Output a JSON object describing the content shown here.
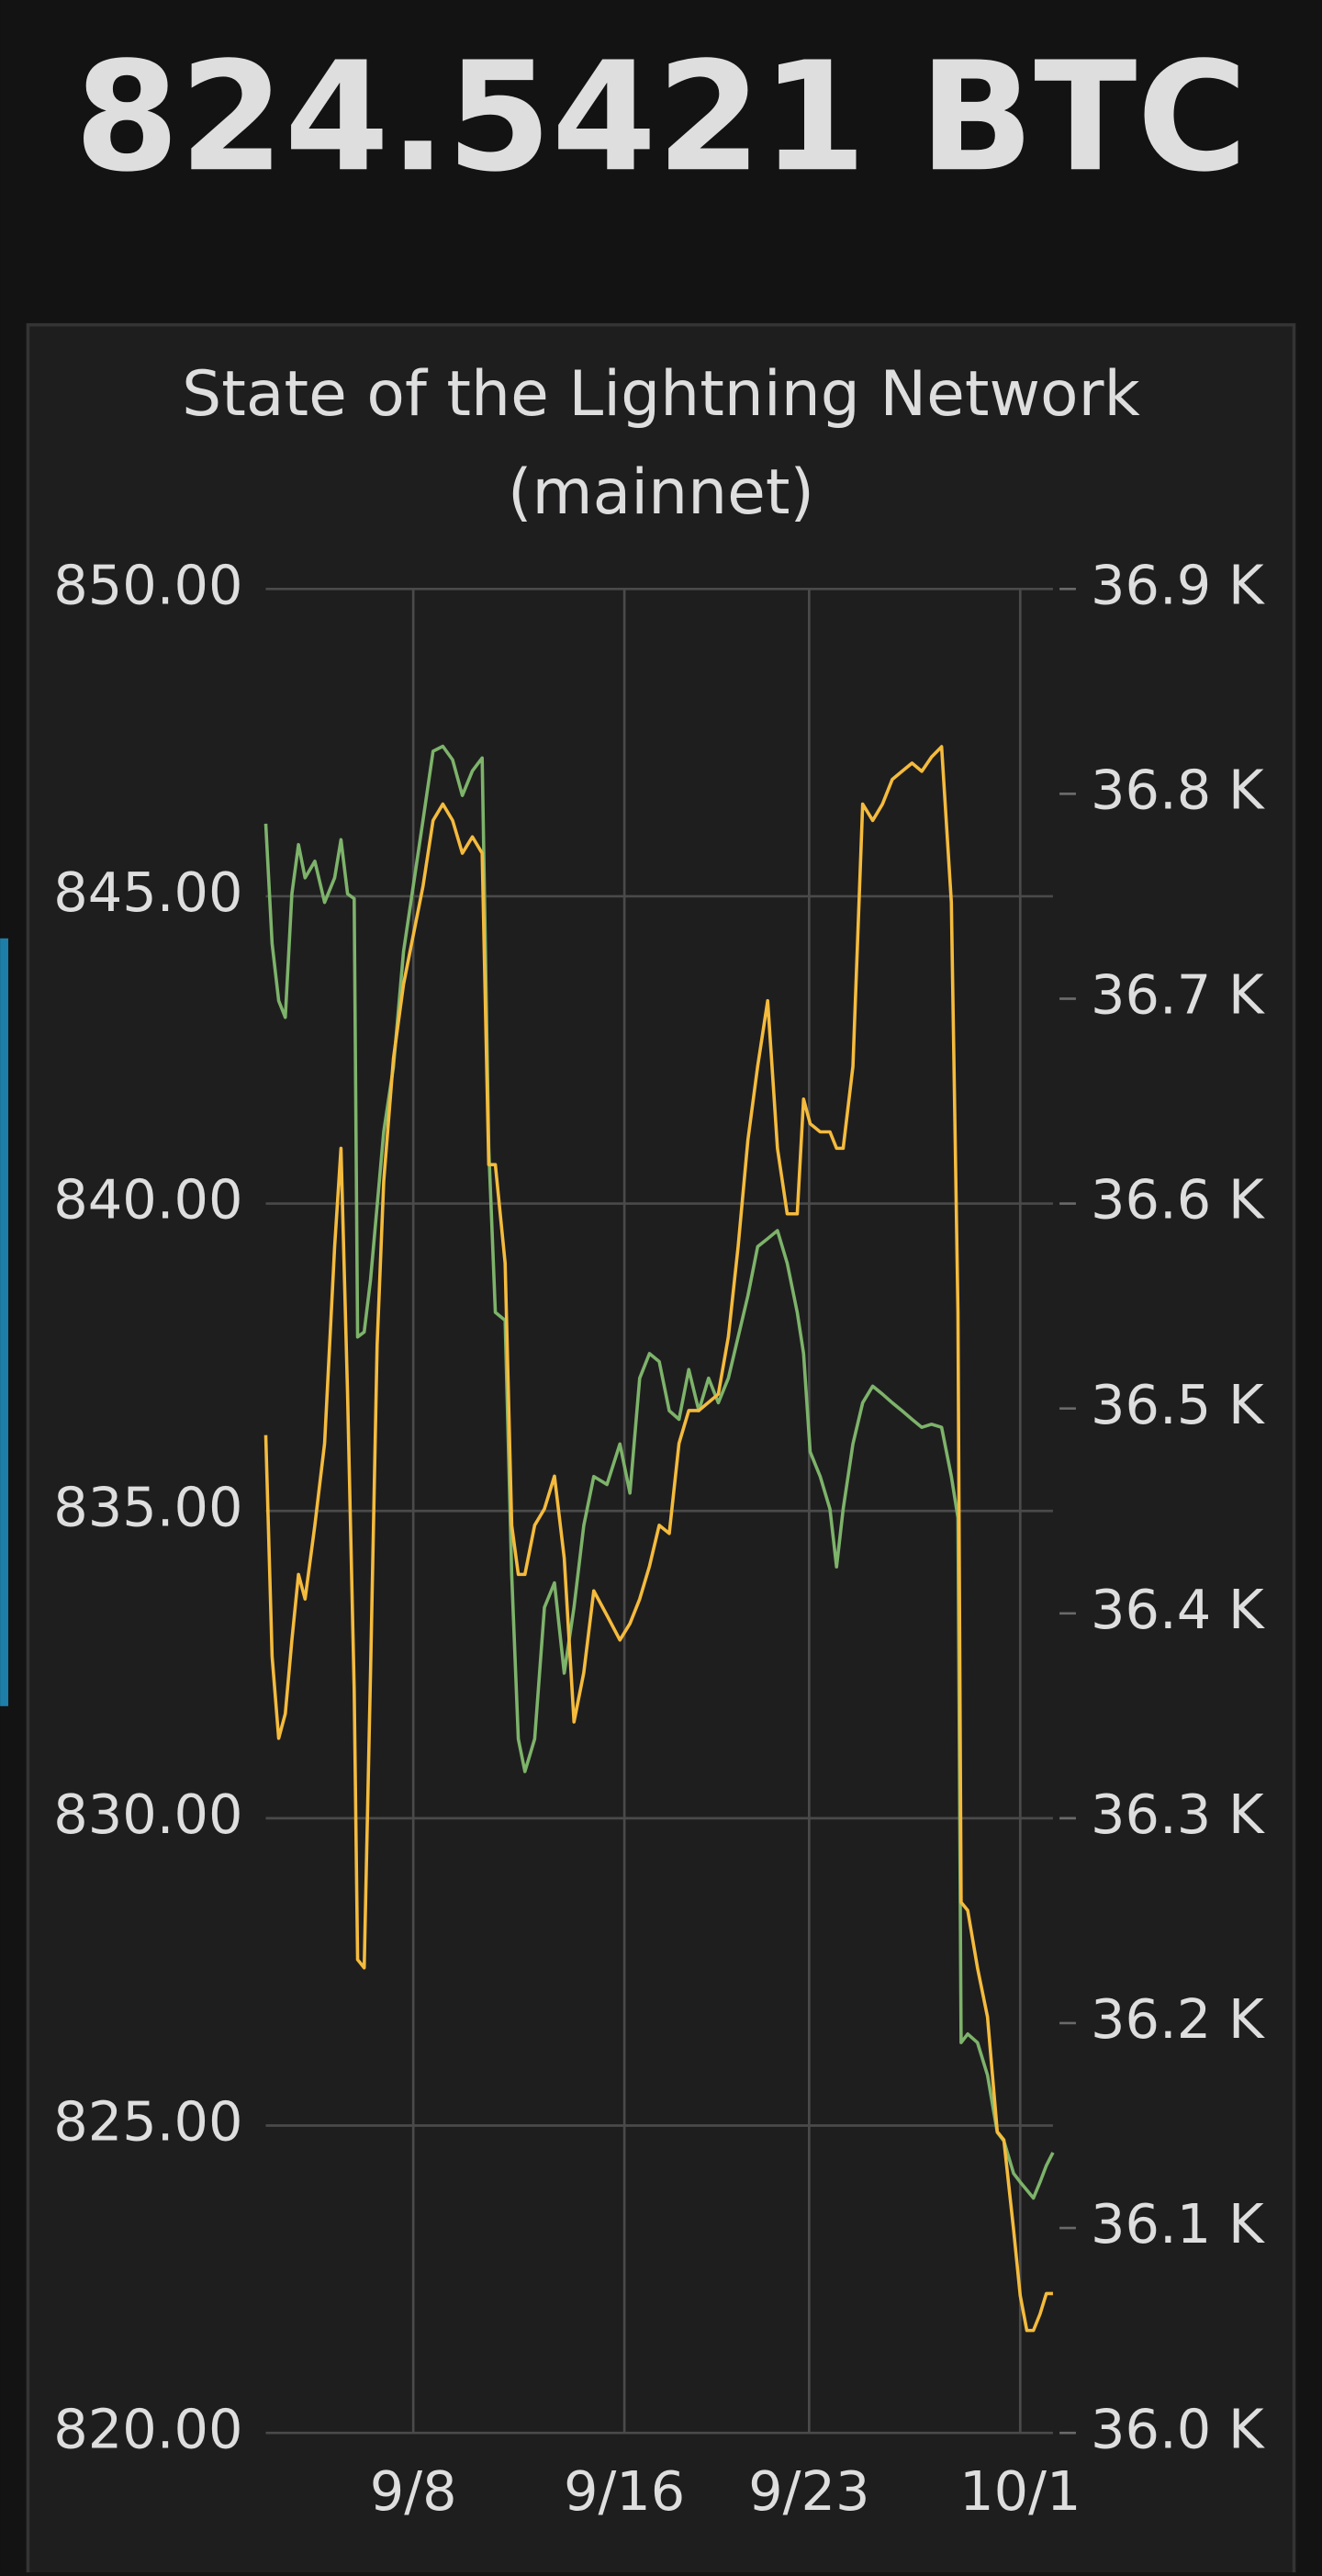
{
  "header": {
    "title": "824.5421 BTC"
  },
  "chart_data": {
    "type": "line",
    "title": "State of the Lightning Network (mainnet)",
    "x": [
      2.41,
      2.65,
      2.9,
      3.15,
      3.4,
      3.65,
      3.9,
      4.27,
      4.64,
      5.02,
      5.26,
      5.51,
      5.76,
      5.89,
      6.14,
      6.38,
      6.63,
      6.88,
      7.25,
      7.63,
      8,
      8.37,
      8.75,
      9.12,
      9.49,
      9.86,
      10.24,
      10.61,
      10.86,
      11.11,
      11.48,
      11.73,
      11.98,
      12.23,
      12.6,
      12.97,
      13.35,
      13.72,
      14.09,
      14.46,
      14.84,
      15.34,
      15.83,
      16.21,
      16.58,
      16.95,
      17.32,
      17.7,
      18.07,
      18.44,
      18.82,
      19.19,
      19.56,
      19.94,
      20.31,
      20.68,
      21.05,
      21.43,
      21.8,
      22.17,
      22.55,
      22.79,
      23.04,
      23.42,
      23.79,
      24.04,
      24.29,
      24.66,
      25.03,
      25.41,
      25.78,
      26.15,
      26.52,
      26.9,
      27.27,
      27.64,
      28.02,
      28.39,
      28.64,
      28.76,
      29.01,
      29.38,
      29.76,
      30.13,
      30.38,
      30.75,
      31,
      31.25,
      31.5,
      31.75,
      31.99,
      32.24
    ],
    "xlim": [
      2.41,
      32.24
    ],
    "xticks": [
      {
        "value": 8,
        "label": "9/8"
      },
      {
        "value": 16,
        "label": "9/16"
      },
      {
        "value": 23,
        "label": "9/23"
      },
      {
        "value": 31,
        "label": "10/1"
      }
    ],
    "ylim": [
      820,
      850
    ],
    "yticks": [
      {
        "value": 820,
        "label": "820.00"
      },
      {
        "value": 825,
        "label": "825.00"
      },
      {
        "value": 830,
        "label": "830.00"
      },
      {
        "value": 835,
        "label": "835.00"
      },
      {
        "value": 840,
        "label": "840.00"
      },
      {
        "value": 845,
        "label": "845.00"
      },
      {
        "value": 850,
        "label": "850.00"
      }
    ],
    "y2lim": [
      36000,
      36900
    ],
    "y2ticks": [
      {
        "value": 36000,
        "label": "36.0 K"
      },
      {
        "value": 36100,
        "label": "36.1 K"
      },
      {
        "value": 36200,
        "label": "36.2 K"
      },
      {
        "value": 36300,
        "label": "36.3 K"
      },
      {
        "value": 36400,
        "label": "36.4 K"
      },
      {
        "value": 36500,
        "label": "36.5 K"
      },
      {
        "value": 36600,
        "label": "36.6 K"
      },
      {
        "value": 36700,
        "label": "36.7 K"
      },
      {
        "value": 36800,
        "label": "36.8 K"
      },
      {
        "value": 36900,
        "label": "36.9 K"
      }
    ],
    "grid": true,
    "series": [
      {
        "color": "#7db36a",
        "values": [
          846.18,
          844.23,
          843.3,
          843.03,
          845.04,
          845.84,
          845.3,
          845.57,
          844.9,
          845.3,
          845.92,
          845.04,
          844.96,
          837.83,
          837.91,
          838.76,
          839.96,
          841.17,
          842.23,
          844.1,
          845.17,
          846.24,
          847.36,
          847.44,
          847.22,
          846.64,
          847.04,
          847.25,
          840.9,
          838.23,
          838.1,
          833.96,
          831.29,
          830.76,
          831.29,
          833.43,
          833.83,
          832.36,
          833.43,
          834.76,
          835.56,
          835.43,
          836.09,
          835.29,
          837.16,
          837.56,
          837.43,
          836.63,
          836.49,
          837.3,
          836.63,
          837.16,
          836.76,
          837.16,
          837.83,
          838.5,
          839.3,
          839.43,
          839.56,
          839.03,
          838.23,
          837.56,
          835.96,
          835.56,
          835.03,
          834.09,
          835.03,
          836.09,
          836.76,
          837.03,
          836.9,
          836.76,
          836.63,
          836.49,
          836.36,
          836.41,
          836.36,
          835.56,
          834.89,
          826.35,
          826.49,
          826.35,
          825.82,
          824.89,
          824.75,
          824.22,
          824.08,
          823.95,
          823.82,
          824.08,
          824.35,
          824.56
        ]
      },
      {
        "color": "#f4bb3d",
        "axis": "y2",
        "values": [
          36487,
          36379,
          36339,
          36351,
          36387,
          36419,
          36407,
          36443,
          36483,
          36579,
          36627,
          36507,
          36363,
          36231,
          36227,
          36371,
          36531,
          36611,
          36671,
          36707,
          36731,
          36755,
          36787,
          36795,
          36787,
          36771,
          36779,
          36771,
          36619,
          36619,
          36571,
          36443,
          36419,
          36419,
          36443,
          36451,
          36467,
          36427,
          36347,
          36371,
          36411,
          36399,
          36387,
          36395,
          36407,
          36423,
          36443,
          36439,
          36483,
          36499,
          36499,
          36503,
          36507,
          36535,
          36579,
          36631,
          36667,
          36699,
          36627,
          36595,
          36595,
          36651,
          36639,
          36635,
          36635,
          36627,
          36627,
          36667,
          36795,
          36787,
          36795,
          36807,
          36811,
          36815,
          36811,
          36818,
          36823,
          36747,
          36547,
          36259,
          36255,
          36227,
          36203,
          36147,
          36143,
          36099,
          36067,
          36050,
          36050,
          36058,
          36068,
          36068
        ]
      }
    ]
  }
}
